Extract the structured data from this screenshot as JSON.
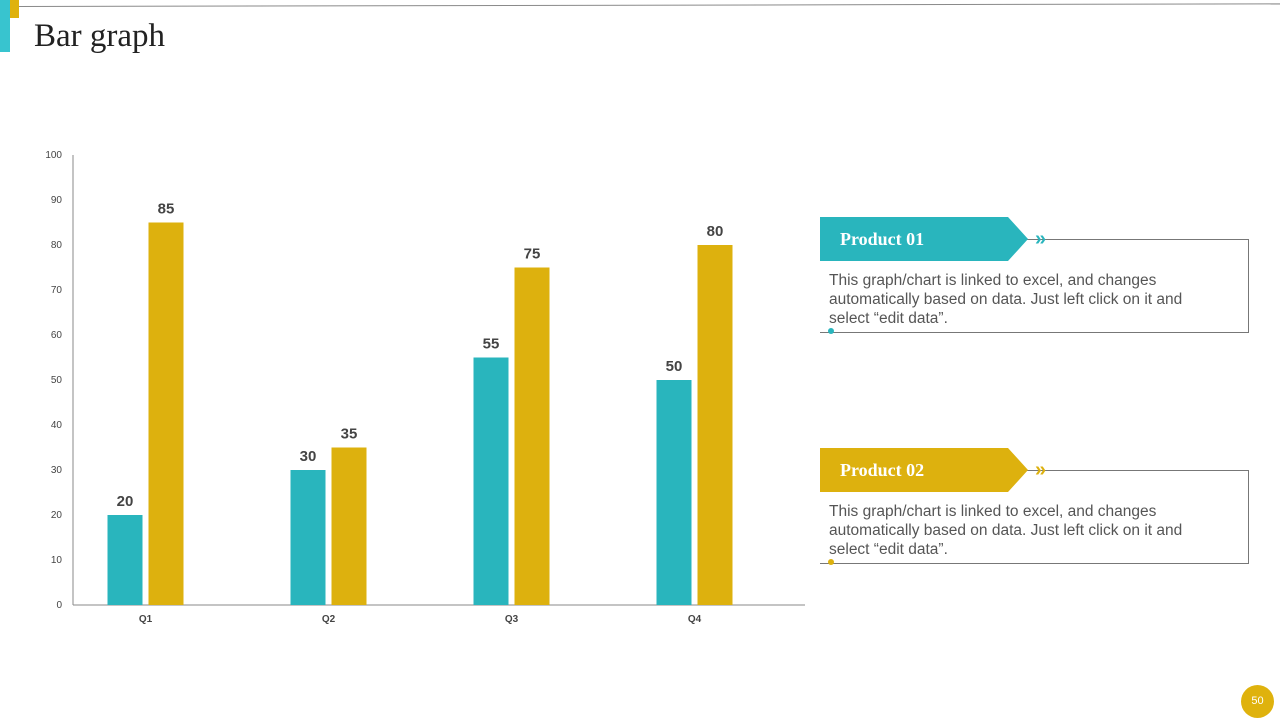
{
  "slide": {
    "title": "Bar graph",
    "page_number": "50"
  },
  "colors": {
    "teal": "#29b5bd",
    "gold": "#ddb10e",
    "accent_teal": "#38c4cf",
    "axis": "#8a8a8a"
  },
  "chart_data": {
    "type": "bar",
    "categories": [
      "Q1",
      "Q2",
      "Q3",
      "Q4"
    ],
    "series": [
      {
        "name": "Product 01",
        "values": [
          20,
          30,
          55,
          50
        ],
        "color": "#29b5bd"
      },
      {
        "name": "Product 02",
        "values": [
          85,
          35,
          75,
          80
        ],
        "color": "#ddb10e"
      }
    ],
    "ylim": [
      0,
      100
    ],
    "yticks": [
      0,
      10,
      20,
      30,
      40,
      50,
      60,
      70,
      80,
      90,
      100
    ],
    "title": "",
    "xlabel": "",
    "ylabel": "",
    "grid": false,
    "data_labels": true,
    "legend_placement": "right"
  },
  "legend_cards": [
    {
      "label": "Product 01",
      "text": "This graph/chart is linked to excel, and changes automatically based on data. Just left click on it and select “edit data”.",
      "chevron": "»",
      "color": "#29b5bd"
    },
    {
      "label": "Product 02",
      "text": "This graph/chart is linked to excel, and changes automatically based on data. Just left click on it and select “edit data”.",
      "chevron": "»",
      "color": "#ddb10e"
    }
  ]
}
